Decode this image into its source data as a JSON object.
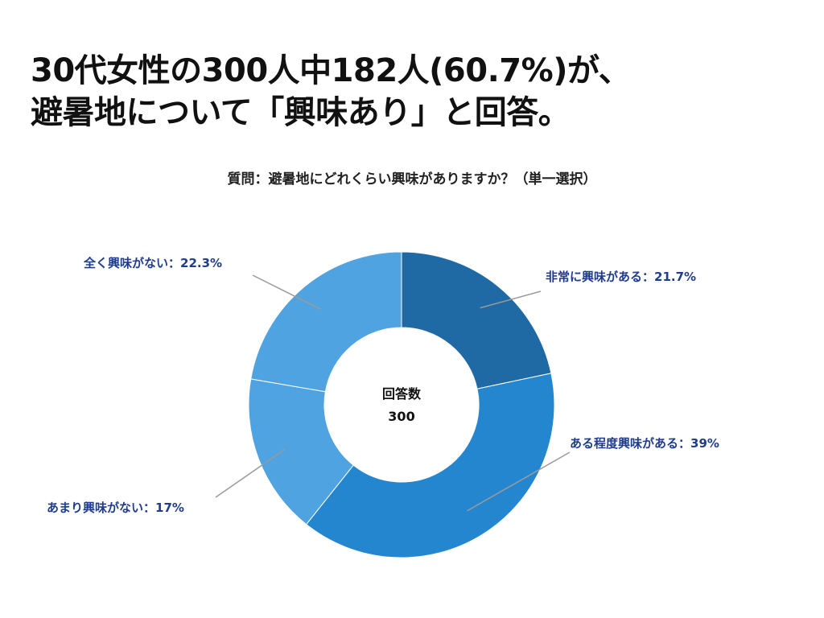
{
  "headline": {
    "line1": "30代女性の300人中182人(60.7%)が、",
    "line2": "避暑地について「興味あり」と回答。"
  },
  "chart_data": {
    "type": "pie",
    "title": "質問：避暑地にどれくらい興味がありますか？（単一選択）",
    "center_label": "回答数",
    "center_value": "300",
    "series": [
      {
        "label": "非常に興味がある：21.7%",
        "value": 21.7,
        "color": "#1f6aa5"
      },
      {
        "label": "ある程度興味がある：39%",
        "value": 39,
        "color": "#2586d0"
      },
      {
        "label": "あまり興味がない：17%",
        "value": 17,
        "color": "#4ea3e0"
      },
      {
        "label": "全く興味がない：22.3%",
        "value": 22.3,
        "color": "#4ea3e0"
      }
    ]
  }
}
